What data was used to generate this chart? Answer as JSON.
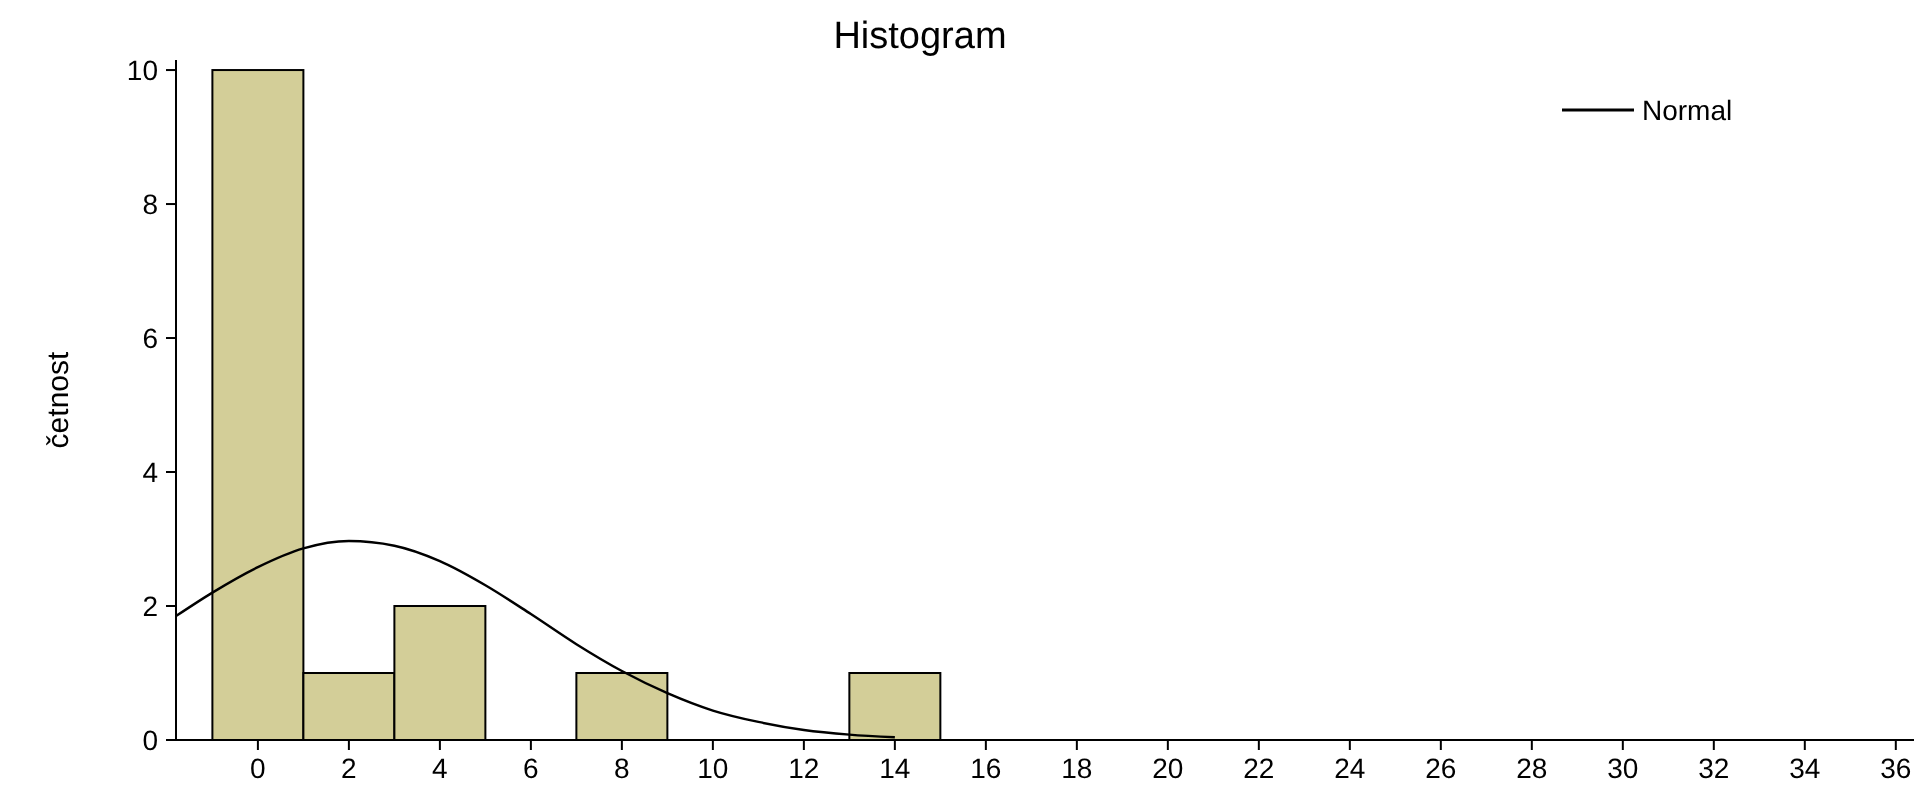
{
  "chart_data": {
    "type": "histogram",
    "title": "Histogram",
    "ylabel": "četnost",
    "bins": [
      -1,
      1,
      3,
      5,
      7,
      9,
      11,
      13,
      15
    ],
    "values": [
      10,
      1,
      2,
      0,
      1,
      0,
      0,
      1
    ],
    "color": "#d3ce98",
    "series": [
      {
        "name": "Normal",
        "type": "line",
        "color": "#000000",
        "x": [
          -1.8,
          -1,
          0,
          1,
          2,
          3,
          4,
          5,
          6,
          7,
          8,
          9,
          10,
          11,
          12,
          13,
          14
        ],
        "values": [
          1.85,
          2.2,
          2.58,
          2.86,
          2.97,
          2.9,
          2.67,
          2.31,
          1.88,
          1.43,
          1.03,
          0.7,
          0.44,
          0.27,
          0.15,
          0.08,
          0.04
        ]
      }
    ],
    "xlim": [
      -1.8,
      36.4
    ],
    "xticks": [
      0,
      2,
      4,
      6,
      8,
      10,
      12,
      14,
      16,
      18,
      20,
      22,
      24,
      26,
      28,
      30,
      32,
      34,
      36
    ],
    "ylim": [
      0,
      10.15
    ],
    "yticks": [
      0,
      2,
      4,
      6,
      8,
      10
    ],
    "grid": false,
    "legend": "top right"
  }
}
